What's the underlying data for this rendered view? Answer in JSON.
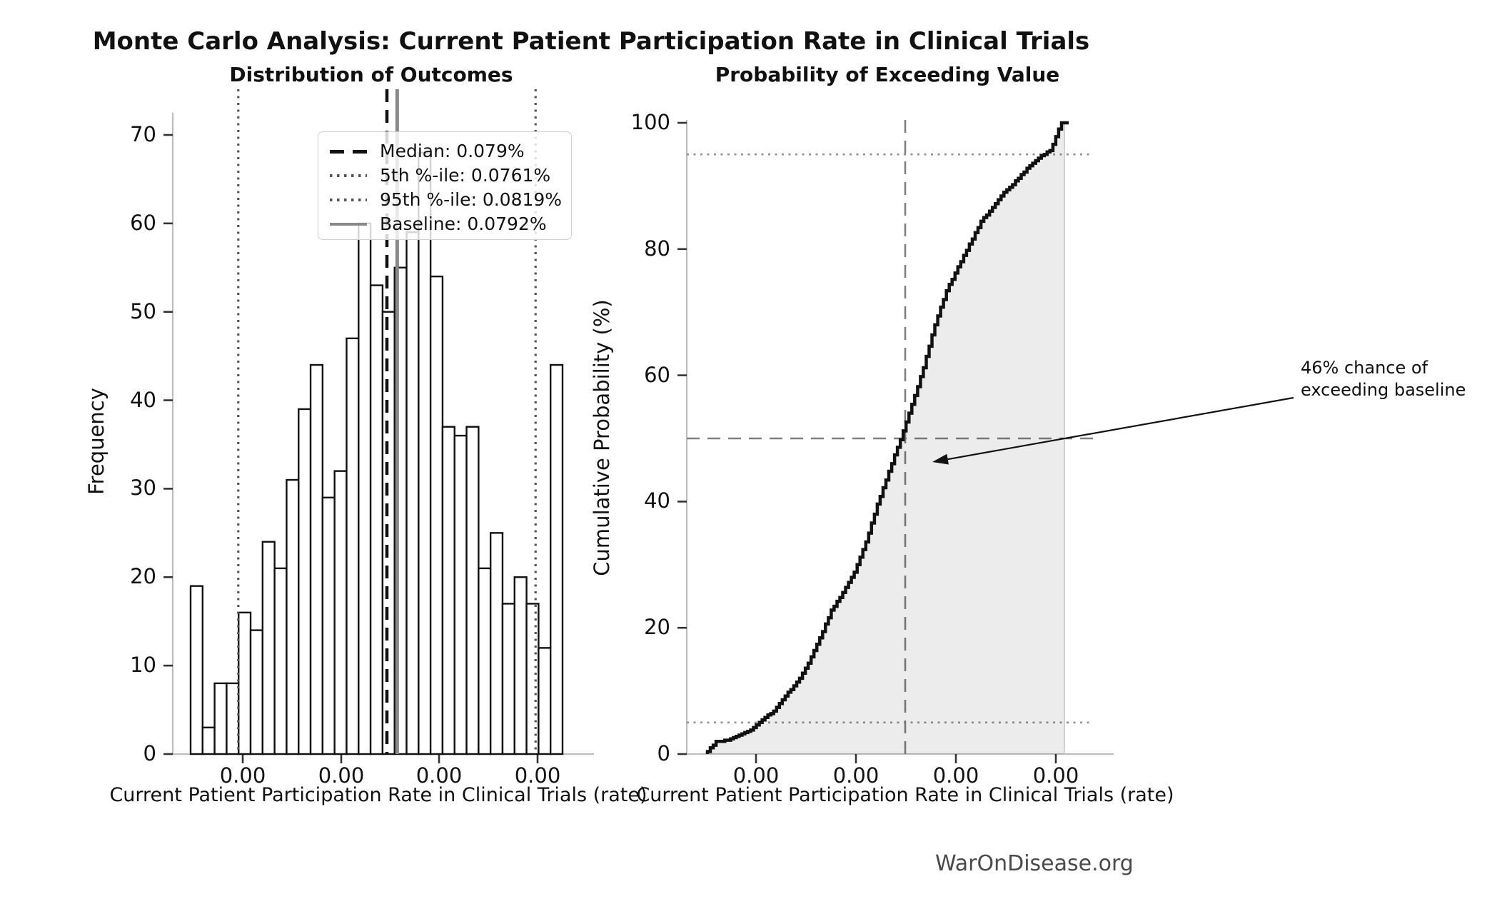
{
  "header": {
    "title": "Monte Carlo Analysis: Current Patient Participation Rate in Clinical Trials"
  },
  "watermark": "WarOnDisease.org",
  "chart_data": [
    {
      "type": "bar",
      "role": "histogram",
      "title": "Distribution of Outcomes",
      "xlabel": "Current Patient Participation Rate in Clinical Trials (rate)",
      "ylabel": "Frequency",
      "n_simulations": 1000,
      "x_tick_labels": [
        "0.00",
        "0.00",
        "0.00",
        "0.00"
      ],
      "y_ticks": [
        0,
        10,
        20,
        30,
        40,
        50,
        60,
        70
      ],
      "ylim": [
        0,
        75
      ],
      "grid": false,
      "bin_start_rate_pct": 0.0751,
      "bin_width_rate_pct": 0.000237,
      "values": [
        19,
        3,
        8,
        8,
        16,
        14,
        24,
        21,
        31,
        39,
        44,
        29,
        32,
        47,
        60,
        53,
        50,
        55,
        59,
        68,
        54,
        37,
        36,
        37,
        21,
        25,
        17,
        20,
        17,
        12,
        44
      ],
      "bar_fill": "#ffffff",
      "bar_edge": "#111111",
      "vlines": [
        {
          "name": "p5",
          "rate_pct": 0.0761,
          "style": "dotted",
          "color": "#555555"
        },
        {
          "name": "median",
          "rate_pct": 0.079,
          "style": "dashed",
          "color": "#111111"
        },
        {
          "name": "baseline",
          "rate_pct": 0.0792,
          "style": "solid",
          "color": "#888888"
        },
        {
          "name": "p95",
          "rate_pct": 0.0819,
          "style": "dotted",
          "color": "#555555"
        }
      ],
      "legend": {
        "position": "upper right",
        "items": [
          {
            "label": "Median: 0.079%",
            "style": "dashed",
            "color": "#111111"
          },
          {
            "label": "5th %-ile: 0.0761%",
            "style": "dotted",
            "color": "#555555"
          },
          {
            "label": "95th %-ile: 0.0819%",
            "style": "dotted",
            "color": "#555555"
          },
          {
            "label": "Baseline: 0.0792%",
            "style": "solid",
            "color": "#888888"
          }
        ]
      }
    },
    {
      "type": "line",
      "role": "empirical-cdf",
      "title": "Probability of Exceeding Value",
      "xlabel": "Current Patient Participation Rate in Clinical Trials (rate)",
      "ylabel": "Cumulative Probability (%)",
      "x_tick_labels": [
        "0.00",
        "0.00",
        "0.00",
        "0.00"
      ],
      "y_ticks": [
        0,
        20,
        40,
        60,
        80,
        100
      ],
      "ylim": [
        0,
        100
      ],
      "grid": false,
      "line_color": "#111111",
      "fill_under_curve": true,
      "fill_opacity": 0.075,
      "cumulative_pct": [
        1.9,
        2.2,
        3.0,
        3.8,
        5.4,
        6.8,
        9.2,
        11.3,
        14.4,
        18.3,
        22.7,
        25.6,
        28.8,
        33.5,
        39.5,
        44.8,
        49.8,
        55.3,
        61.2,
        68.0,
        73.4,
        77.1,
        80.7,
        84.4,
        86.5,
        89.0,
        90.7,
        92.7,
        94.4,
        95.6,
        100.0
      ],
      "hlines": [
        {
          "value": 95,
          "style": "dotted",
          "color": "#909090"
        },
        {
          "value": 50,
          "style": "dashed",
          "color": "#808080"
        },
        {
          "value": 5,
          "style": "dotted",
          "color": "#909090"
        }
      ],
      "vline": {
        "name": "median",
        "rate_pct": 0.079,
        "style": "dashed",
        "color": "#808080"
      },
      "annotation": {
        "line1": "46% chance of",
        "line2": "exceeding baseline"
      }
    }
  ]
}
